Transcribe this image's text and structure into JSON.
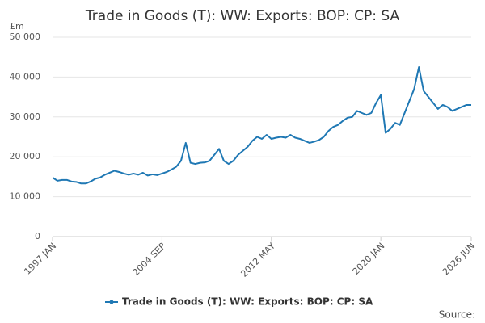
{
  "chart_data": {
    "type": "line",
    "title": "Trade in Goods (T): WW: Exports: BOP: CP: SA",
    "y_unit": "£m",
    "source": "Source:",
    "categories": [
      "1997 JAN",
      null,
      null,
      null,
      null,
      null,
      null,
      null,
      null,
      null,
      null,
      null,
      null,
      null,
      null,
      null,
      null,
      null,
      null,
      null,
      null,
      null,
      null,
      "2004 SEP",
      null,
      null,
      null,
      null,
      null,
      null,
      null,
      null,
      null,
      null,
      null,
      null,
      null,
      null,
      null,
      null,
      null,
      null,
      null,
      null,
      null,
      null,
      "2012 MAY",
      null,
      null,
      null,
      null,
      null,
      null,
      null,
      null,
      null,
      null,
      null,
      null,
      null,
      null,
      null,
      null,
      null,
      null,
      null,
      null,
      null,
      null,
      "2020 JAN",
      null,
      null,
      null,
      null,
      null,
      null,
      null,
      null,
      null,
      null,
      null,
      null,
      null,
      null,
      null,
      null,
      null,
      null,
      "2026 JUN"
    ],
    "series": [
      {
        "name": "Trade in Goods (T): WW: Exports: BOP: CP: SA",
        "color": "#1f78b4",
        "values": [
          14800,
          14000,
          14200,
          14200,
          13800,
          13700,
          13300,
          13300,
          13800,
          14500,
          14800,
          15500,
          16000,
          16500,
          16200,
          15800,
          15500,
          15800,
          15500,
          16000,
          15300,
          15600,
          15400,
          15800,
          16200,
          16800,
          17500,
          19000,
          23500,
          18500,
          18200,
          18500,
          18600,
          19000,
          20500,
          22000,
          19000,
          18200,
          19000,
          20500,
          21500,
          22500,
          24000,
          25000,
          24500,
          25500,
          24500,
          24800,
          25000,
          24800,
          25500,
          24800,
          24500,
          24000,
          23500,
          23800,
          24200,
          25000,
          26500,
          27500,
          28000,
          29000,
          29800,
          30000,
          31500,
          31000,
          30500,
          31000,
          33500,
          35500,
          26000,
          27000,
          28500,
          28000,
          31000,
          34000,
          37000,
          42500,
          36500,
          35000,
          33500,
          32000,
          33000,
          32500,
          31500,
          32000,
          32500,
          33000,
          33000
        ]
      }
    ],
    "ylim": [
      0,
      50000
    ],
    "yticks": [
      0,
      {
        "value": 10000,
        "label": "10 000"
      },
      {
        "value": 20000,
        "label": "20 000"
      },
      {
        "value": 30000,
        "label": "30 000"
      },
      {
        "value": 40000,
        "label": "40 000"
      },
      {
        "value": 50000,
        "label": "50 000"
      }
    ],
    "grid": true
  }
}
